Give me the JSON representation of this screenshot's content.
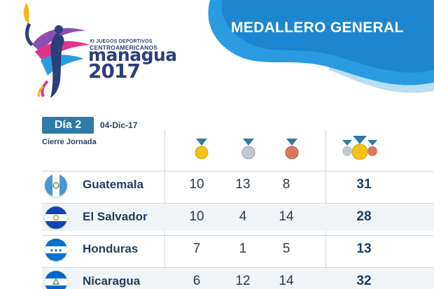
{
  "header": {
    "title": "MEDALLERO GENERAL"
  },
  "logo": {
    "line1": "XI JUEGOS DEPORTIVOS",
    "line2": "CENTROAMERICANOS",
    "city": "managua",
    "year": "2017"
  },
  "day": {
    "label": "Día 2",
    "date": "04-Dic-17",
    "status": "Cierre Jornada"
  },
  "medal_icons": [
    "gold-medal-icon",
    "silver-medal-icon",
    "bronze-medal-icon",
    "total-medals-icon"
  ],
  "colors": {
    "accent": "#2e7ba8",
    "swoosh": "#1f8ed6",
    "gold": "#f2c21a",
    "silver": "#b9bec4",
    "bronze": "#d9785a"
  },
  "rows": [
    {
      "country": "Guatemala",
      "gold": "10",
      "silver": "13",
      "bronze": "8",
      "total": "31"
    },
    {
      "country": "El Salvador",
      "gold": "10",
      "silver": "4",
      "bronze": "14",
      "total": "28"
    },
    {
      "country": "Honduras",
      "gold": "7",
      "silver": "1",
      "bronze": "5",
      "total": "13"
    },
    {
      "country": "Nicaragua",
      "gold": "6",
      "silver": "12",
      "bronze": "14",
      "total": "32"
    }
  ]
}
